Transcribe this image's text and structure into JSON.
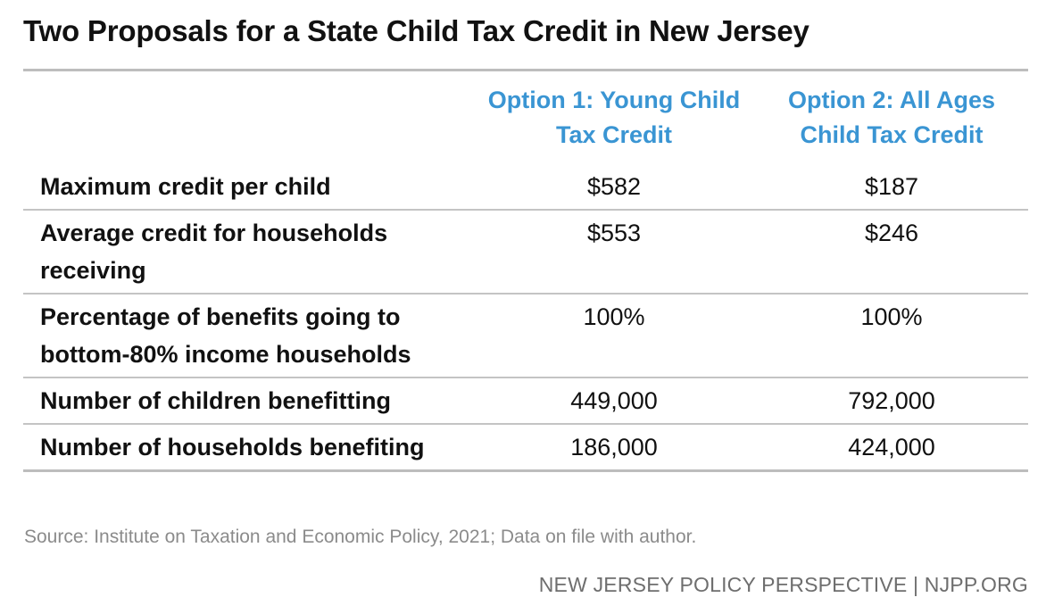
{
  "title": "Two Proposals for a State Child Tax Credit in New Jersey",
  "columns": {
    "option1": "Option 1: Young Child Tax Credit",
    "option2": "Option 2: All Ages Child Tax Credit"
  },
  "rows": [
    {
      "label": "Maximum credit per child",
      "option1": "$582",
      "option2": "$187"
    },
    {
      "label": "Average credit for households receiving",
      "option1": "$553",
      "option2": "$246"
    },
    {
      "label": "Percentage of benefits going to bottom-80% income households",
      "option1": "100%",
      "option2": "100%"
    },
    {
      "label": "Number of children benefitting",
      "option1": "449,000",
      "option2": "792,000"
    },
    {
      "label": "Number of households benefiting",
      "option1": "186,000",
      "option2": "424,000"
    }
  ],
  "source": "Source: Institute on Taxation and Economic Policy, 2021; Data on file with author.",
  "credit": "NEW JERSEY POLICY PERSPECTIVE | NJPP.ORG",
  "colors": {
    "header_text": "#3a95d3",
    "rule": "#bdbdbd",
    "source_text": "#8b8b8b"
  }
}
